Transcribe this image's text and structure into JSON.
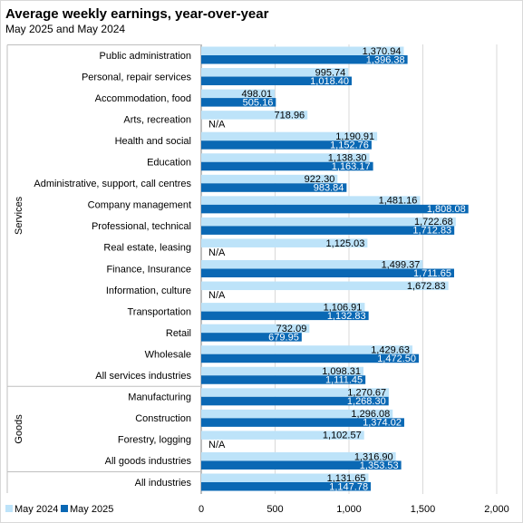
{
  "header": {
    "title": "Average weekly earnings, year-over-year",
    "subtitle": "May 2025 and May 2024"
  },
  "chart_data": {
    "type": "bar",
    "orientation": "horizontal",
    "title": "Average weekly earnings, year-over-year",
    "subtitle": "May 2025 and May 2024",
    "xlabel": "",
    "ylabel": "",
    "xlim": [
      0,
      2000
    ],
    "x_ticks": [
      "0",
      "500",
      "1,000",
      "1,500",
      "2,000"
    ],
    "grid": "vertical",
    "legend_position": "bottom-left",
    "groups": [
      {
        "name": "Services",
        "categories": [
          "Public administration",
          "Personal, repair services",
          "Accommodation, food",
          "Arts, recreation",
          "Health and social",
          "Education",
          "Administrative, support, call centres",
          "Company management",
          "Professional, technical",
          "Real estate, leasing",
          "Finance, Insurance",
          "Information, culture",
          "Transportation",
          "Retail",
          "Wholesale",
          "All services industries"
        ]
      },
      {
        "name": "Goods",
        "categories": [
          "Manufacturing",
          "Construction",
          "Forestry, logging",
          "All goods industries"
        ]
      },
      {
        "name": "",
        "categories": [
          "All industries"
        ]
      }
    ],
    "categories": [
      "Public administration",
      "Personal, repair services",
      "Accommodation, food",
      "Arts, recreation",
      "Health and social",
      "Education",
      "Administrative, support, call centres",
      "Company management",
      "Professional, technical",
      "Real estate, leasing",
      "Finance, Insurance",
      "Information, culture",
      "Transportation",
      "Retail",
      "Wholesale",
      "All services industries",
      "Manufacturing",
      "Construction",
      "Forestry, logging",
      "All goods industries",
      "All industries"
    ],
    "series": [
      {
        "name": "May 2024",
        "color": "#bde3f9",
        "values": [
          1370.94,
          995.74,
          498.01,
          718.96,
          1190.91,
          1138.3,
          922.3,
          1481.16,
          1722.68,
          1125.03,
          1499.37,
          1672.83,
          1106.91,
          732.09,
          1429.63,
          1098.31,
          1270.67,
          1296.08,
          1102.57,
          1316.9,
          1131.65
        ],
        "labels": [
          "1,370.94",
          "995.74",
          "498.01",
          "718.96",
          "1,190.91",
          "1,138.30",
          "922.30",
          "1,481.16",
          "1,722.68",
          "1,125.03",
          "1,499.37",
          "1,672.83",
          "1,106.91",
          "732.09",
          "1,429.63",
          "1,098.31",
          "1,270.67",
          "1,296.08",
          "1,102.57",
          "1,316.90",
          "1,131.65"
        ]
      },
      {
        "name": "May 2025",
        "color": "#0a68b4",
        "values": [
          1396.38,
          1018.4,
          505.16,
          null,
          1152.76,
          1163.17,
          983.84,
          1808.08,
          1712.83,
          null,
          1711.65,
          null,
          1132.83,
          679.95,
          1472.5,
          1111.45,
          1268.3,
          1374.02,
          null,
          1353.53,
          1147.78
        ],
        "labels": [
          "1,396.38",
          "1,018.40",
          "505.16",
          "N/A",
          "1,152.76",
          "1,163.17",
          "983.84",
          "1,808.08",
          "1,712.83",
          "N/A",
          "1,711.65",
          "N/A",
          "1,132.83",
          "679.95",
          "1,472.50",
          "1,111.45",
          "1,268.30",
          "1,374.02",
          "N/A",
          "1,353.53",
          "1,147.78"
        ]
      }
    ]
  }
}
